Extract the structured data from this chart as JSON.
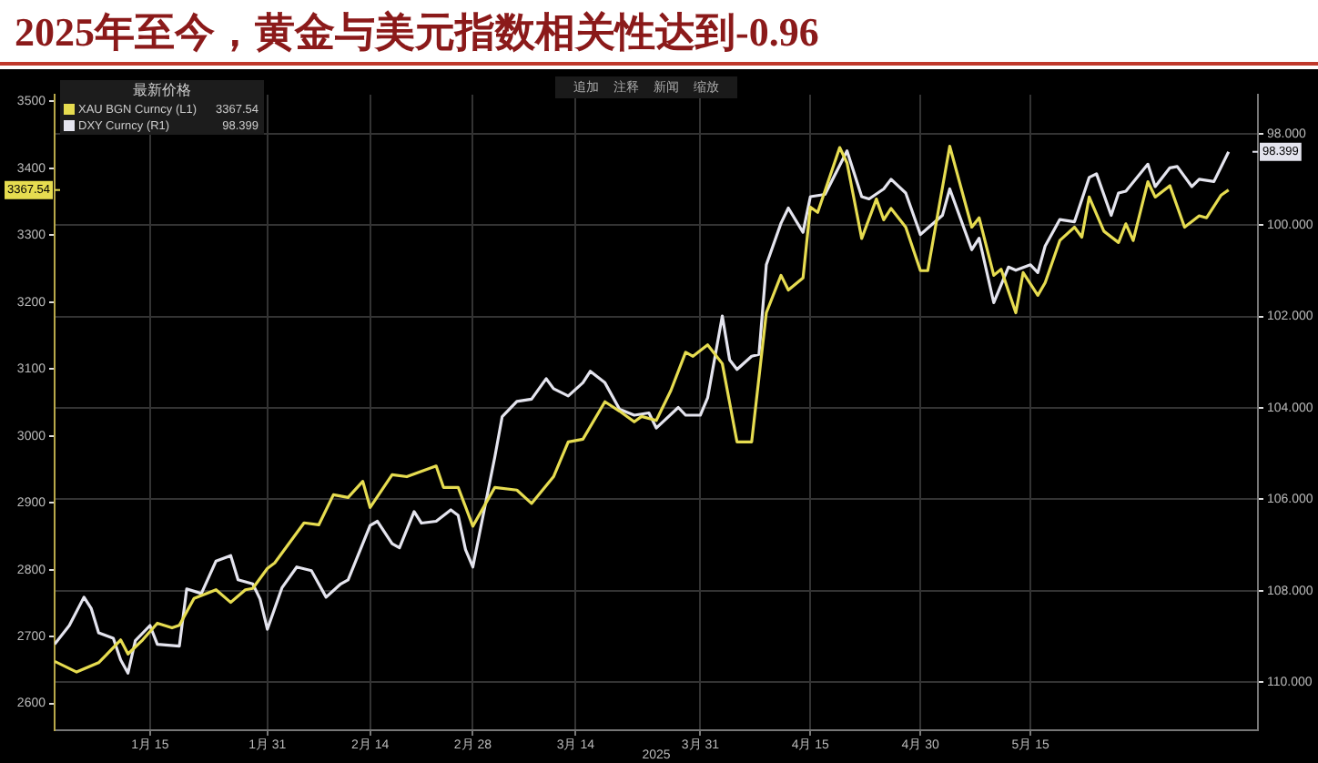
{
  "chart_data": {
    "type": "line",
    "title": "2025年至今，黄金与美元指数相关性达到-0.96",
    "xlabel": "2025",
    "legend_title": "最新价格",
    "annotations": [
      "追加",
      "注释",
      "新闻",
      "缩放",
      "3367.54",
      "98.399"
    ],
    "series": [
      {
        "name": "XAU BGN Curncy (L1)",
        "color": "#e6dc50",
        "x": [
          "2025-01-02",
          "2025-01-05",
          "2025-01-08",
          "2025-01-09",
          "2025-01-11",
          "2025-01-12",
          "2025-01-14",
          "2025-01-16",
          "2025-01-18",
          "2025-01-19",
          "2025-01-21",
          "2025-01-24",
          "2025-01-26",
          "2025-01-28",
          "2025-01-29",
          "2025-01-31",
          "2025-02-01",
          "2025-02-05",
          "2025-02-07",
          "2025-02-09",
          "2025-02-11",
          "2025-02-13",
          "2025-02-14",
          "2025-02-17",
          "2025-02-19",
          "2025-02-23",
          "2025-02-24",
          "2025-02-26",
          "2025-02-28",
          "2025-03-03",
          "2025-03-06",
          "2025-03-08",
          "2025-03-11",
          "2025-03-13",
          "2025-03-15",
          "2025-03-18",
          "2025-03-20",
          "2025-03-22",
          "2025-03-23",
          "2025-03-25",
          "2025-03-27",
          "2025-03-29",
          "2025-03-30",
          "2025-04-01",
          "2025-04-03",
          "2025-04-05",
          "2025-04-07",
          "2025-04-09",
          "2025-04-11",
          "2025-04-12",
          "2025-04-14",
          "2025-04-15",
          "2025-04-16",
          "2025-04-19",
          "2025-04-20",
          "2025-04-22",
          "2025-04-24",
          "2025-04-25",
          "2025-04-26",
          "2025-04-28",
          "2025-04-30",
          "2025-05-01",
          "2025-05-04",
          "2025-05-07",
          "2025-05-08",
          "2025-05-10",
          "2025-05-11",
          "2025-05-13",
          "2025-05-14",
          "2025-05-16",
          "2025-05-17",
          "2025-05-19",
          "2025-05-21",
          "2025-05-22",
          "2025-05-23",
          "2025-05-25",
          "2025-05-27",
          "2025-05-28",
          "2025-05-29",
          "2025-05-31",
          "2025-06-01",
          "2025-06-03",
          "2025-06-05",
          "2025-06-07",
          "2025-06-08",
          "2025-06-10",
          "2025-06-11"
        ],
        "values": [
          2663,
          2647,
          2661,
          2672,
          2695,
          2674,
          2695,
          2720,
          2713,
          2717,
          2757,
          2770,
          2751,
          2770,
          2772,
          2802,
          2810,
          2870,
          2867,
          2912,
          2908,
          2932,
          2893,
          2942,
          2939,
          2955,
          2923,
          2923,
          2865,
          2923,
          2919,
          2899,
          2939,
          2991,
          2995,
          3051,
          3037,
          3021,
          3029,
          3023,
          3068,
          3125,
          3119,
          3136,
          3108,
          2991,
          2991,
          3184,
          3240,
          3218,
          3236,
          3342,
          3334,
          3431,
          3408,
          3295,
          3354,
          3323,
          3340,
          3312,
          3247,
          3247,
          3433,
          3312,
          3326,
          3240,
          3249,
          3184,
          3244,
          3210,
          3229,
          3292,
          3312,
          3297,
          3357,
          3306,
          3289,
          3317,
          3292,
          3380,
          3357,
          3374,
          3312,
          3329,
          3326,
          3360,
          3367.54
        ]
      },
      {
        "name": "DXY Curncy (R1)",
        "color": "#e4e4ee",
        "axis": "y2",
        "x": [
          "2025-01-02",
          "2025-01-04",
          "2025-01-06",
          "2025-01-07",
          "2025-01-08",
          "2025-01-10",
          "2025-01-11",
          "2025-01-12",
          "2025-01-13",
          "2025-01-15",
          "2025-01-16",
          "2025-01-19",
          "2025-01-20",
          "2025-01-22",
          "2025-01-24",
          "2025-01-26",
          "2025-01-27",
          "2025-01-29",
          "2025-01-30",
          "2025-01-31",
          "2025-02-02",
          "2025-02-04",
          "2025-02-06",
          "2025-02-08",
          "2025-02-10",
          "2025-02-11",
          "2025-02-14",
          "2025-02-15",
          "2025-02-17",
          "2025-02-18",
          "2025-02-20",
          "2025-02-21",
          "2025-02-23",
          "2025-02-25",
          "2025-02-26",
          "2025-02-27",
          "2025-02-28",
          "2025-03-03",
          "2025-03-04",
          "2025-03-06",
          "2025-03-08",
          "2025-03-10",
          "2025-03-11",
          "2025-03-13",
          "2025-03-15",
          "2025-03-16",
          "2025-03-18",
          "2025-03-20",
          "2025-03-22",
          "2025-03-24",
          "2025-03-25",
          "2025-03-28",
          "2025-03-29",
          "2025-03-31",
          "2025-04-01",
          "2025-04-03",
          "2025-04-04",
          "2025-04-05",
          "2025-04-07",
          "2025-04-08",
          "2025-04-09",
          "2025-04-11",
          "2025-04-12",
          "2025-04-14",
          "2025-04-15",
          "2025-04-17",
          "2025-04-20",
          "2025-04-22",
          "2025-04-23",
          "2025-04-25",
          "2025-04-26",
          "2025-04-28",
          "2025-04-30",
          "2025-05-03",
          "2025-05-04",
          "2025-05-07",
          "2025-05-08",
          "2025-05-10",
          "2025-05-12",
          "2025-05-13",
          "2025-05-15",
          "2025-05-16",
          "2025-05-17",
          "2025-05-19",
          "2025-05-21",
          "2025-05-23",
          "2025-05-24",
          "2025-05-26",
          "2025-05-27",
          "2025-05-28",
          "2025-05-31",
          "2025-06-01",
          "2025-06-03",
          "2025-06-04",
          "2025-06-06",
          "2025-06-07",
          "2025-06-09",
          "2025-06-11"
        ],
        "values": [
          109.17,
          108.76,
          108.14,
          108.39,
          108.92,
          109.04,
          109.51,
          109.8,
          109.09,
          108.76,
          109.17,
          109.21,
          107.96,
          108.06,
          107.35,
          107.23,
          107.76,
          107.85,
          108.18,
          108.84,
          107.93,
          107.48,
          107.56,
          108.14,
          107.85,
          107.76,
          106.57,
          106.48,
          106.97,
          107.06,
          106.27,
          106.52,
          106.48,
          106.23,
          106.35,
          107.1,
          107.48,
          105.07,
          104.19,
          103.86,
          103.81,
          103.36,
          103.58,
          103.74,
          103.45,
          103.2,
          103.45,
          104.03,
          104.16,
          104.11,
          104.44,
          103.99,
          104.16,
          104.16,
          103.78,
          101.99,
          102.95,
          103.16,
          102.87,
          102.83,
          100.87,
          99.96,
          99.63,
          100.16,
          99.38,
          99.33,
          98.38,
          99.38,
          99.43,
          99.21,
          99.0,
          99.3,
          100.21,
          99.79,
          99.21,
          100.54,
          100.29,
          101.7,
          100.92,
          100.99,
          100.87,
          101.04,
          100.46,
          99.88,
          99.93,
          98.96,
          98.88,
          99.79,
          99.3,
          99.26,
          98.67,
          99.16,
          98.75,
          98.72,
          99.16,
          99.0,
          99.05,
          98.399
        ]
      }
    ],
    "xlim": [
      "2025-01-02",
      "2025-06-15"
    ],
    "xticks": [
      {
        "value": "2025-01-15",
        "label": "1月 15"
      },
      {
        "value": "2025-01-31",
        "label": "1月 31"
      },
      {
        "value": "2025-02-14",
        "label": "2月 14"
      },
      {
        "value": "2025-02-28",
        "label": "2月 28"
      },
      {
        "value": "2025-03-14",
        "label": "3月 14"
      },
      {
        "value": "2025-03-31",
        "label": "3月 31"
      },
      {
        "value": "2025-04-15",
        "label": "4月 15"
      },
      {
        "value": "2025-04-30",
        "label": "4月 30"
      },
      {
        "value": "2025-05-15",
        "label": "5月 15"
      }
    ],
    "ylim": [
      2560,
      3510
    ],
    "yticks": [
      2600,
      2700,
      2800,
      2900,
      3000,
      3100,
      3200,
      3300,
      3400,
      3500
    ],
    "y2lim": [
      111.05,
      97.15
    ],
    "y2ticks": [
      {
        "value": 98,
        "label": "98.000"
      },
      {
        "value": 100,
        "label": "100.000"
      },
      {
        "value": 102,
        "label": "102.000"
      },
      {
        "value": 104,
        "label": "104.000"
      },
      {
        "value": 106,
        "label": "106.000"
      },
      {
        "value": 108,
        "label": "108.000"
      },
      {
        "value": 110,
        "label": "110.000"
      }
    ],
    "grid": true,
    "legend": "top left"
  }
}
